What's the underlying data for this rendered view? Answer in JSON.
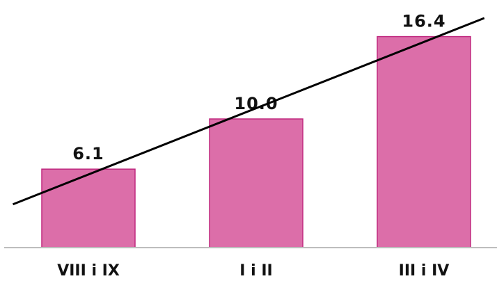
{
  "chart_data": {
    "type": "bar",
    "categories": [
      "VIII i IX",
      "I i II",
      "III i IV"
    ],
    "values": [
      6.1,
      10.0,
      16.4
    ],
    "value_labels": [
      "6.1",
      "10.0",
      "16.4"
    ],
    "title": "",
    "xlabel": "",
    "ylabel": "",
    "ylim": [
      0,
      17.5
    ],
    "grid": false,
    "legend": "none",
    "trendline": true,
    "colors": {
      "bar_fill": "#dc6ea9",
      "bar_stroke": "#c0287f",
      "trendline": "#000000",
      "baseline": "#bdbdbd",
      "text": "#111111"
    }
  }
}
